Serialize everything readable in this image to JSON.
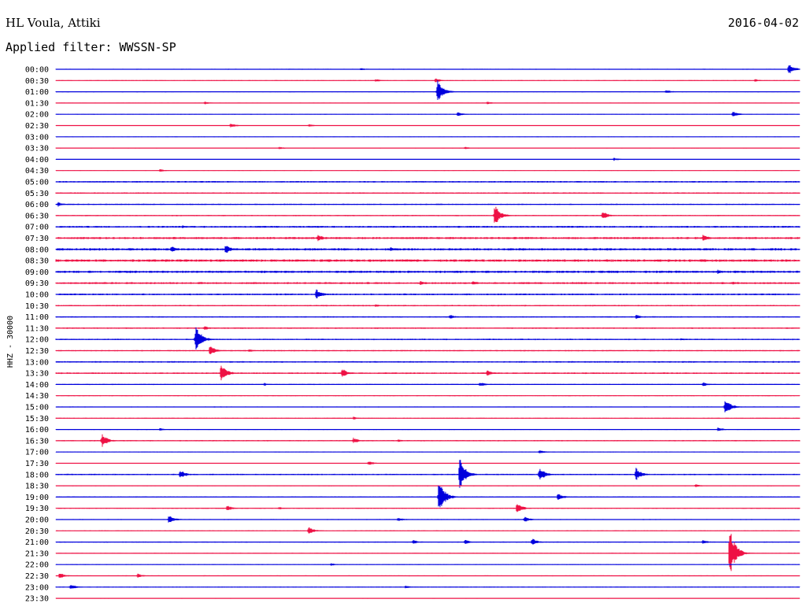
{
  "header": {
    "station": "HL Voula, Attiki",
    "date": "2016-04-02",
    "filter_label": "Applied filter:",
    "filter_value": "WWSSN-SP",
    "channel": "HHZ - 30000"
  },
  "colors": {
    "blue": "#0000dd",
    "red": "#ee1144"
  },
  "chart_data": {
    "type": "line",
    "title": "",
    "xlabel": "",
    "ylabel": "HHZ - 30000",
    "x_range_minutes": [
      0,
      30
    ],
    "rows": [
      {
        "label": "00:00",
        "color": "blue",
        "noise": 0.6,
        "events": [
          {
            "t": 0.41,
            "amp": 2
          },
          {
            "t": 0.985,
            "amp": 7
          }
        ]
      },
      {
        "label": "00:30",
        "color": "red",
        "noise": 0.5,
        "events": [
          {
            "t": 0.43,
            "amp": 2
          },
          {
            "t": 0.51,
            "amp": 3
          },
          {
            "t": 0.94,
            "amp": 2
          }
        ]
      },
      {
        "label": "01:00",
        "color": "blue",
        "noise": 0.6,
        "events": [
          {
            "t": 0.513,
            "amp": 16
          },
          {
            "t": 0.82,
            "amp": 3
          }
        ]
      },
      {
        "label": "01:30",
        "color": "red",
        "noise": 0.5,
        "events": [
          {
            "t": 0.2,
            "amp": 2
          },
          {
            "t": 0.58,
            "amp": 2
          }
        ]
      },
      {
        "label": "02:00",
        "color": "blue",
        "noise": 0.5,
        "events": [
          {
            "t": 0.54,
            "amp": 3
          },
          {
            "t": 0.91,
            "amp": 4
          }
        ]
      },
      {
        "label": "02:30",
        "color": "red",
        "noise": 0.5,
        "events": [
          {
            "t": 0.235,
            "amp": 3
          },
          {
            "t": 0.34,
            "amp": 2
          }
        ]
      },
      {
        "label": "03:00",
        "color": "blue",
        "noise": 0.4,
        "events": []
      },
      {
        "label": "03:30",
        "color": "red",
        "noise": 0.5,
        "events": [
          {
            "t": 0.3,
            "amp": 2
          },
          {
            "t": 0.55,
            "amp": 2
          }
        ]
      },
      {
        "label": "04:00",
        "color": "blue",
        "noise": 0.4,
        "events": [
          {
            "t": 0.75,
            "amp": 2
          }
        ]
      },
      {
        "label": "04:30",
        "color": "red",
        "noise": 0.4,
        "events": [
          {
            "t": 0.14,
            "amp": 2
          }
        ]
      },
      {
        "label": "05:00",
        "color": "blue",
        "noise": 1.0,
        "events": []
      },
      {
        "label": "05:30",
        "color": "red",
        "noise": 0.9,
        "events": []
      },
      {
        "label": "06:00",
        "color": "blue",
        "noise": 0.8,
        "events": [
          {
            "t": 0.003,
            "amp": 3
          }
        ]
      },
      {
        "label": "06:30",
        "color": "red",
        "noise": 0.8,
        "events": [
          {
            "t": 0.59,
            "amp": 14
          },
          {
            "t": 0.735,
            "amp": 6
          }
        ]
      },
      {
        "label": "07:00",
        "color": "blue",
        "noise": 1.2,
        "events": [
          {
            "t": 0.17,
            "amp": 2
          }
        ]
      },
      {
        "label": "07:30",
        "color": "red",
        "noise": 1.4,
        "events": [
          {
            "t": 0.352,
            "amp": 5
          },
          {
            "t": 0.87,
            "amp": 5
          }
        ]
      },
      {
        "label": "08:00",
        "color": "blue",
        "noise": 1.5,
        "events": [
          {
            "t": 0.155,
            "amp": 5
          },
          {
            "t": 0.228,
            "amp": 6
          },
          {
            "t": 0.45,
            "amp": 3
          }
        ]
      },
      {
        "label": "08:30",
        "color": "red",
        "noise": 1.6,
        "events": []
      },
      {
        "label": "09:00",
        "color": "blue",
        "noise": 1.5,
        "events": [
          {
            "t": 0.89,
            "amp": 3
          }
        ]
      },
      {
        "label": "09:30",
        "color": "red",
        "noise": 1.3,
        "events": [
          {
            "t": 0.49,
            "amp": 3
          },
          {
            "t": 0.56,
            "amp": 3
          },
          {
            "t": 0.91,
            "amp": 2
          }
        ]
      },
      {
        "label": "10:00",
        "color": "blue",
        "noise": 1.1,
        "events": [
          {
            "t": 0.35,
            "amp": 7
          }
        ]
      },
      {
        "label": "10:30",
        "color": "red",
        "noise": 0.9,
        "events": [
          {
            "t": 0.43,
            "amp": 2
          }
        ]
      },
      {
        "label": "11:00",
        "color": "blue",
        "noise": 0.8,
        "events": [
          {
            "t": 0.53,
            "amp": 3
          },
          {
            "t": 0.78,
            "amp": 3
          }
        ]
      },
      {
        "label": "11:30",
        "color": "red",
        "noise": 0.9,
        "events": [
          {
            "t": 0.2,
            "amp": 3
          }
        ]
      },
      {
        "label": "12:00",
        "color": "blue",
        "noise": 0.9,
        "events": [
          {
            "t": 0.188,
            "amp": 19
          },
          {
            "t": 0.84,
            "amp": 2
          }
        ]
      },
      {
        "label": "12:30",
        "color": "red",
        "noise": 0.8,
        "events": [
          {
            "t": 0.207,
            "amp": 7
          },
          {
            "t": 0.26,
            "amp": 2
          }
        ]
      },
      {
        "label": "13:00",
        "color": "blue",
        "noise": 1.0,
        "events": []
      },
      {
        "label": "13:30",
        "color": "red",
        "noise": 1.0,
        "events": [
          {
            "t": 0.222,
            "amp": 12
          },
          {
            "t": 0.385,
            "amp": 6
          },
          {
            "t": 0.58,
            "amp": 4
          }
        ]
      },
      {
        "label": "14:00",
        "color": "blue",
        "noise": 0.7,
        "events": [
          {
            "t": 0.28,
            "amp": 2
          },
          {
            "t": 0.57,
            "amp": 3
          },
          {
            "t": 0.87,
            "amp": 3
          }
        ]
      },
      {
        "label": "14:30",
        "color": "red",
        "noise": 0.6,
        "events": []
      },
      {
        "label": "15:00",
        "color": "blue",
        "noise": 0.6,
        "events": [
          {
            "t": 0.9,
            "amp": 10
          }
        ]
      },
      {
        "label": "15:30",
        "color": "red",
        "noise": 0.6,
        "events": [
          {
            "t": 0.4,
            "amp": 2
          }
        ]
      },
      {
        "label": "16:00",
        "color": "blue",
        "noise": 0.6,
        "events": [
          {
            "t": 0.14,
            "amp": 2
          },
          {
            "t": 0.89,
            "amp": 3
          }
        ]
      },
      {
        "label": "16:30",
        "color": "red",
        "noise": 0.8,
        "events": [
          {
            "t": 0.062,
            "amp": 9
          },
          {
            "t": 0.4,
            "amp": 4
          },
          {
            "t": 0.46,
            "amp": 2
          }
        ]
      },
      {
        "label": "17:00",
        "color": "blue",
        "noise": 0.5,
        "events": [
          {
            "t": 0.65,
            "amp": 3
          }
        ]
      },
      {
        "label": "17:30",
        "color": "red",
        "noise": 0.5,
        "events": [
          {
            "t": 0.42,
            "amp": 3
          }
        ]
      },
      {
        "label": "18:00",
        "color": "blue",
        "noise": 0.9,
        "events": [
          {
            "t": 0.167,
            "amp": 6
          },
          {
            "t": 0.543,
            "amp": 22
          },
          {
            "t": 0.65,
            "amp": 9
          },
          {
            "t": 0.78,
            "amp": 9
          }
        ]
      },
      {
        "label": "18:30",
        "color": "red",
        "noise": 0.6,
        "events": [
          {
            "t": 0.86,
            "amp": 2
          }
        ]
      },
      {
        "label": "19:00",
        "color": "blue",
        "noise": 0.7,
        "events": [
          {
            "t": 0.515,
            "amp": 22
          },
          {
            "t": 0.675,
            "amp": 5
          }
        ]
      },
      {
        "label": "19:30",
        "color": "red",
        "noise": 0.7,
        "events": [
          {
            "t": 0.23,
            "amp": 4
          },
          {
            "t": 0.3,
            "amp": 2
          },
          {
            "t": 0.62,
            "amp": 7
          }
        ]
      },
      {
        "label": "20:00",
        "color": "blue",
        "noise": 0.6,
        "events": [
          {
            "t": 0.152,
            "amp": 6
          },
          {
            "t": 0.46,
            "amp": 3
          },
          {
            "t": 0.63,
            "amp": 4
          }
        ]
      },
      {
        "label": "20:30",
        "color": "red",
        "noise": 0.5,
        "events": [
          {
            "t": 0.34,
            "amp": 5
          }
        ]
      },
      {
        "label": "21:00",
        "color": "blue",
        "noise": 0.7,
        "events": [
          {
            "t": 0.48,
            "amp": 3
          },
          {
            "t": 0.55,
            "amp": 3
          },
          {
            "t": 0.64,
            "amp": 5
          },
          {
            "t": 0.87,
            "amp": 3
          }
        ]
      },
      {
        "label": "21:30",
        "color": "red",
        "noise": 0.6,
        "events": [
          {
            "t": 0.906,
            "amp": 34
          }
        ]
      },
      {
        "label": "22:00",
        "color": "blue",
        "noise": 0.5,
        "events": [
          {
            "t": 0.37,
            "amp": 2
          }
        ]
      },
      {
        "label": "22:30",
        "color": "red",
        "noise": 0.6,
        "events": [
          {
            "t": 0.005,
            "amp": 4
          },
          {
            "t": 0.11,
            "amp": 3
          }
        ]
      },
      {
        "label": "23:00",
        "color": "blue",
        "noise": 0.6,
        "events": [
          {
            "t": 0.02,
            "amp": 4
          },
          {
            "t": 0.47,
            "amp": 2
          }
        ]
      },
      {
        "label": "23:30",
        "color": "red",
        "noise": 0.5,
        "events": []
      }
    ]
  }
}
